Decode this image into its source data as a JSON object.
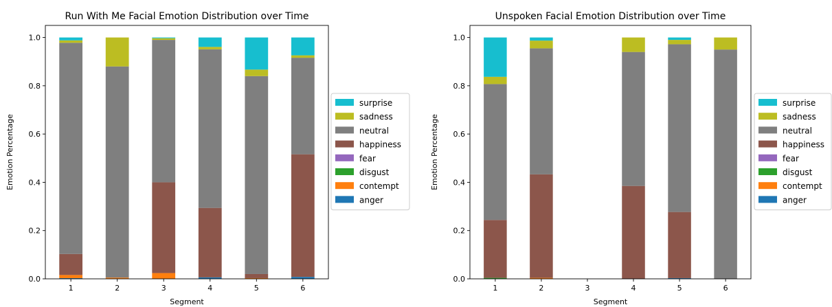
{
  "chart_data": [
    {
      "type": "bar",
      "stacked": true,
      "title": "Run With Me Facial Emotion Distribution over Time",
      "xlabel": "Segment",
      "ylabel": "Emotion Percentage",
      "ylim": [
        0,
        1.05
      ],
      "yticks": [
        "0.0",
        "0.2",
        "0.4",
        "0.6",
        "0.8",
        "1.0"
      ],
      "grid": false,
      "legend_position": "right",
      "categories": [
        "1",
        "2",
        "3",
        "4",
        "5",
        "6"
      ],
      "series": [
        {
          "name": "anger",
          "color": "#1f77b4",
          "values": [
            0.003,
            0.0,
            0.0,
            0.006,
            0.0,
            0.008
          ]
        },
        {
          "name": "contempt",
          "color": "#ff7f0e",
          "values": [
            0.013,
            0.005,
            0.024,
            0.0,
            0.003,
            0.0
          ]
        },
        {
          "name": "disgust",
          "color": "#2ca02c",
          "values": [
            0.0,
            0.0,
            0.0,
            0.0,
            0.0,
            0.0
          ]
        },
        {
          "name": "fear",
          "color": "#9467bd",
          "values": [
            0.0,
            0.0,
            0.0,
            0.0,
            0.0,
            0.0
          ]
        },
        {
          "name": "happiness",
          "color": "#8c564b",
          "values": [
            0.087,
            0.0,
            0.376,
            0.288,
            0.017,
            0.508
          ]
        },
        {
          "name": "neutral",
          "color": "#7f7f7f",
          "values": [
            0.875,
            0.875,
            0.59,
            0.657,
            0.82,
            0.4
          ]
        },
        {
          "name": "sadness",
          "color": "#bcbd22",
          "values": [
            0.01,
            0.12,
            0.007,
            0.01,
            0.027,
            0.01
          ]
        },
        {
          "name": "surprise",
          "color": "#17becf",
          "values": [
            0.012,
            0.0,
            0.003,
            0.039,
            0.133,
            0.074
          ]
        }
      ]
    },
    {
      "type": "bar",
      "stacked": true,
      "title": "Unspoken Facial Emotion Distribution over Time",
      "xlabel": "Segment",
      "ylabel": "Emotion Percentage",
      "ylim": [
        0,
        1.05
      ],
      "yticks": [
        "0.0",
        "0.2",
        "0.4",
        "0.6",
        "0.8",
        "1.0"
      ],
      "grid": false,
      "legend_position": "right",
      "categories": [
        "1",
        "2",
        "3",
        "4",
        "5",
        "6"
      ],
      "series": [
        {
          "name": "anger",
          "color": "#1f77b4",
          "values": [
            0.0,
            0.0,
            0.0,
            0.0,
            0.003,
            0.0
          ]
        },
        {
          "name": "contempt",
          "color": "#ff7f0e",
          "values": [
            0.0,
            0.004,
            0.0,
            0.0,
            0.0,
            0.0
          ]
        },
        {
          "name": "disgust",
          "color": "#2ca02c",
          "values": [
            0.004,
            0.0,
            0.0,
            0.0,
            0.0,
            0.0
          ]
        },
        {
          "name": "fear",
          "color": "#9467bd",
          "values": [
            0.0,
            0.0,
            0.0,
            0.0,
            0.0,
            0.0
          ]
        },
        {
          "name": "happiness",
          "color": "#8c564b",
          "values": [
            0.24,
            0.429,
            0.0,
            0.385,
            0.274,
            0.0
          ]
        },
        {
          "name": "neutral",
          "color": "#7f7f7f",
          "values": [
            0.563,
            0.522,
            0.0,
            0.555,
            0.695,
            0.95
          ]
        },
        {
          "name": "sadness",
          "color": "#bcbd22",
          "values": [
            0.03,
            0.032,
            0.0,
            0.06,
            0.018,
            0.05
          ]
        },
        {
          "name": "surprise",
          "color": "#17becf",
          "values": [
            0.163,
            0.013,
            0.0,
            0.0,
            0.01,
            0.0
          ]
        }
      ]
    }
  ]
}
